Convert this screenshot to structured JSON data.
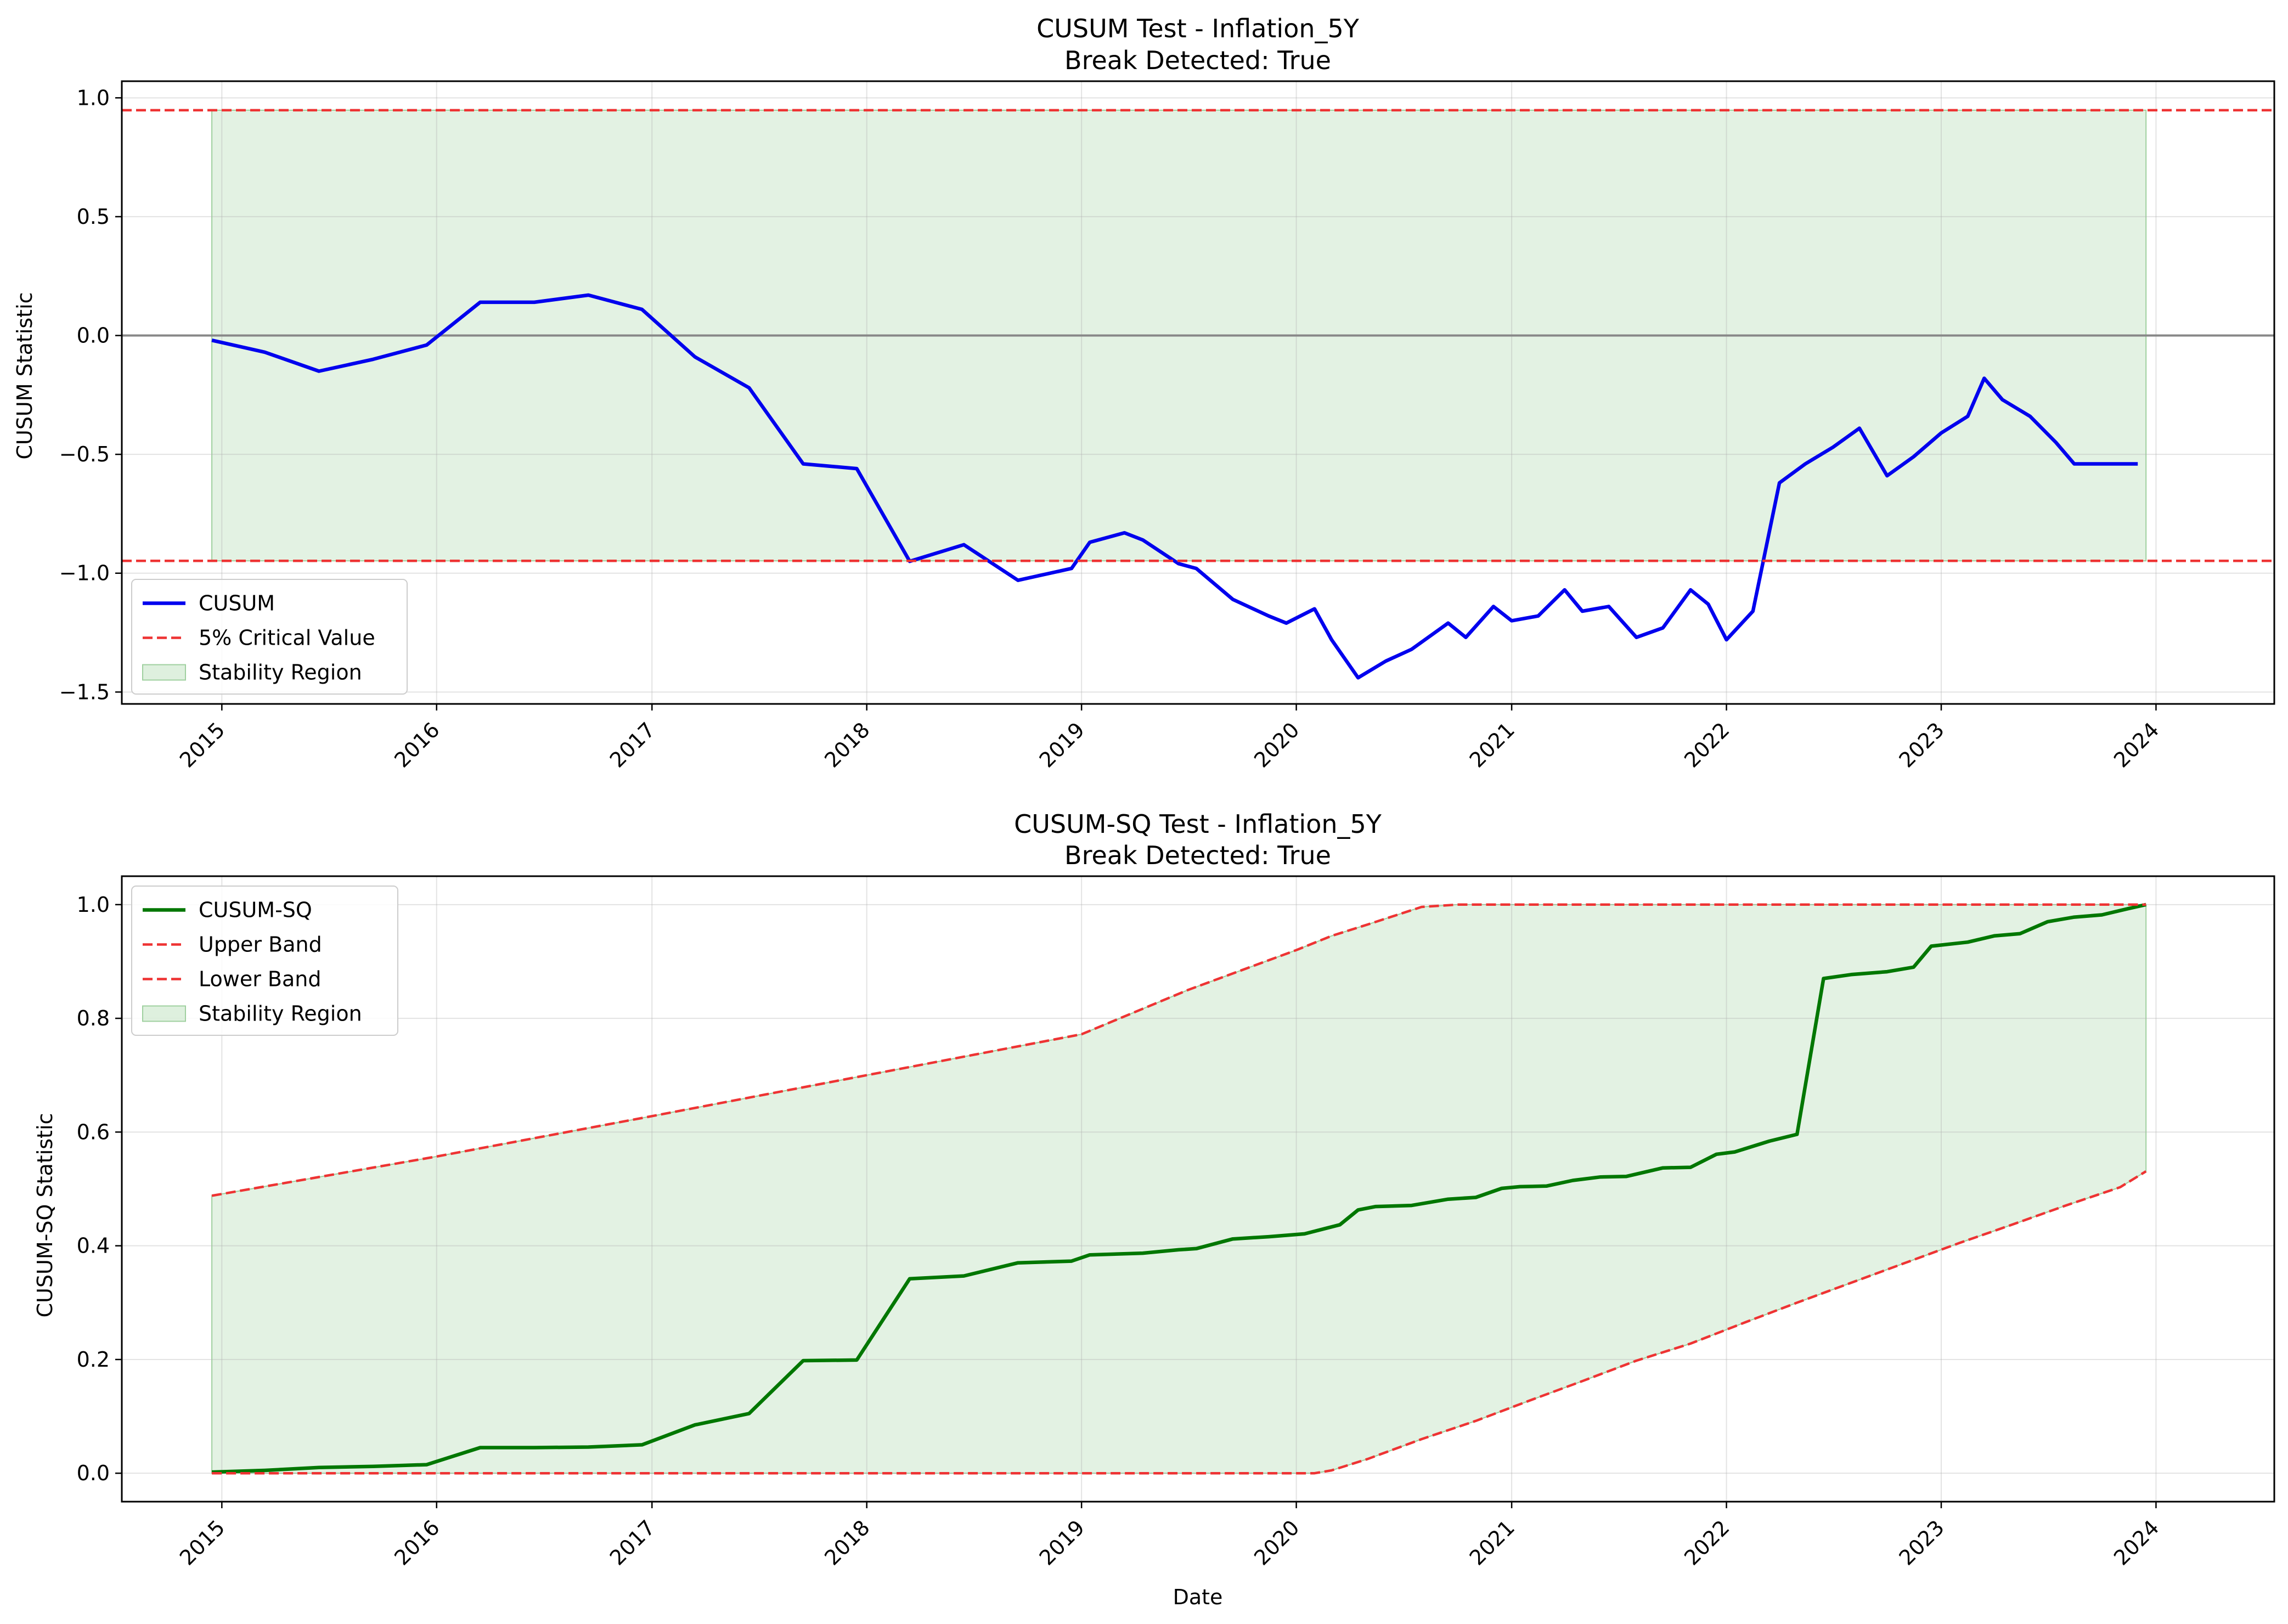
{
  "chart_data": [
    {
      "type": "line",
      "title": "CUSUM Test - Inflation_5Y",
      "subtitle": "Break Detected: True",
      "xlabel": "",
      "ylabel": "CUSUM Statistic",
      "x_ticks": [
        "2015",
        "2016",
        "2017",
        "2018",
        "2019",
        "2020",
        "2021",
        "2022",
        "2023",
        "2024"
      ],
      "xlim": [
        "2014-07-15",
        "2024-07-20"
      ],
      "ylim": [
        -1.55,
        1.07
      ],
      "y_ticks": [
        1.0,
        0.5,
        0.0,
        -0.5,
        -1.0,
        -1.5
      ],
      "y_tick_labels": [
        "1.0",
        "0.5",
        "0.0",
        "−0.5",
        "−1.0",
        "−1.5"
      ],
      "grid": true,
      "legend_position": "lower-left",
      "series": [
        {
          "name": "CUSUM",
          "color": "#0000ee",
          "style": "solid",
          "x": [
            "2014-12-15",
            "2015-03-15",
            "2015-06-15",
            "2015-09-15",
            "2015-12-15",
            "2016-03-15",
            "2016-06-15",
            "2016-09-15",
            "2016-12-15",
            "2017-03-15",
            "2017-06-15",
            "2017-09-15",
            "2017-12-15",
            "2018-03-15",
            "2018-06-15",
            "2018-09-15",
            "2018-12-15",
            "2019-01-15",
            "2019-03-15",
            "2019-04-15",
            "2019-06-15",
            "2019-07-15",
            "2019-09-15",
            "2019-11-15",
            "2019-12-15",
            "2020-02-01",
            "2020-03-01",
            "2020-04-15",
            "2020-06-01",
            "2020-07-15",
            "2020-09-15",
            "2020-10-15",
            "2020-12-01",
            "2021-01-01",
            "2021-02-15",
            "2021-04-01",
            "2021-05-01",
            "2021-06-15",
            "2021-08-01",
            "2021-09-15",
            "2021-11-01",
            "2021-12-01",
            "2022-01-01",
            "2022-02-15",
            "2022-04-01",
            "2022-05-15",
            "2022-07-01",
            "2022-08-15",
            "2022-10-01",
            "2022-11-15",
            "2023-01-01",
            "2023-02-15",
            "2023-03-15",
            "2023-04-15",
            "2023-06-01",
            "2023-07-15",
            "2023-08-15",
            "2023-10-01",
            "2023-11-01",
            "2023-12-01"
          ],
          "y": [
            -0.02,
            -0.07,
            -0.15,
            -0.1,
            -0.04,
            0.14,
            0.14,
            0.17,
            0.11,
            -0.09,
            -0.22,
            -0.54,
            -0.56,
            -0.95,
            -0.88,
            -1.03,
            -0.98,
            -0.87,
            -0.83,
            -0.86,
            -0.96,
            -0.98,
            -1.11,
            -1.18,
            -1.21,
            -1.15,
            -1.28,
            -1.44,
            -1.37,
            -1.32,
            -1.21,
            -1.27,
            -1.14,
            -1.2,
            -1.18,
            -1.07,
            -1.16,
            -1.14,
            -1.27,
            -1.23,
            -1.07,
            -1.13,
            -1.28,
            -1.16,
            -0.62,
            -0.54,
            -0.47,
            -0.39,
            -0.59,
            -0.51,
            -0.41,
            -0.34,
            -0.18,
            -0.27,
            -0.34,
            -0.45,
            -0.54,
            -0.54,
            -0.54,
            -0.54
          ]
        },
        {
          "name": "5% Critical Value",
          "color": "#ee3333",
          "style": "dashed",
          "values": [
            0.948,
            -0.948
          ]
        }
      ],
      "fill": {
        "name": "Stability Region",
        "color": "#c8e6c8",
        "y_range": [
          -0.948,
          0.948
        ],
        "x_range": [
          "2014-12-15",
          "2023-12-15"
        ]
      },
      "reference_line": {
        "y": 0.0,
        "color": "#888888"
      },
      "legend": [
        "CUSUM",
        "5% Critical Value",
        "Stability Region"
      ]
    },
    {
      "type": "line",
      "title": "CUSUM-SQ Test - Inflation_5Y",
      "subtitle": "Break Detected: True",
      "xlabel": "Date",
      "ylabel": "CUSUM-SQ Statistic",
      "x_ticks": [
        "2015",
        "2016",
        "2017",
        "2018",
        "2019",
        "2020",
        "2021",
        "2022",
        "2023",
        "2024"
      ],
      "xlim": [
        "2014-07-15",
        "2024-07-20"
      ],
      "ylim": [
        -0.05,
        1.05
      ],
      "y_ticks": [
        1.0,
        0.8,
        0.6,
        0.4,
        0.2,
        0.0
      ],
      "y_tick_labels": [
        "1.0",
        "0.8",
        "0.6",
        "0.4",
        "0.2",
        "0.0"
      ],
      "grid": true,
      "legend_position": "upper-left",
      "series": [
        {
          "name": "CUSUM-SQ",
          "color": "#007700",
          "style": "solid",
          "x": [
            "2014-12-15",
            "2015-03-15",
            "2015-06-15",
            "2015-09-15",
            "2015-12-15",
            "2016-03-15",
            "2016-06-15",
            "2016-09-15",
            "2016-12-15",
            "2017-03-15",
            "2017-06-15",
            "2017-09-15",
            "2017-12-15",
            "2018-03-15",
            "2018-06-15",
            "2018-09-15",
            "2018-12-15",
            "2019-01-15",
            "2019-04-15",
            "2019-06-15",
            "2019-07-15",
            "2019-09-15",
            "2019-11-15",
            "2020-01-15",
            "2020-03-15",
            "2020-04-15",
            "2020-05-15",
            "2020-07-15",
            "2020-09-15",
            "2020-11-01",
            "2020-12-15",
            "2021-01-15",
            "2021-03-01",
            "2021-04-15",
            "2021-06-01",
            "2021-07-15",
            "2021-09-15",
            "2021-11-01",
            "2021-12-15",
            "2022-01-15",
            "2022-03-15",
            "2022-05-01",
            "2022-06-15",
            "2022-08-01",
            "2022-10-01",
            "2022-11-15",
            "2022-12-15",
            "2023-02-15",
            "2023-04-01",
            "2023-05-15",
            "2023-07-01",
            "2023-08-15",
            "2023-10-01",
            "2023-11-15",
            "2023-12-15"
          ],
          "y": [
            0.002,
            0.005,
            0.01,
            0.012,
            0.015,
            0.045,
            0.045,
            0.046,
            0.05,
            0.085,
            0.105,
            0.198,
            0.199,
            0.342,
            0.347,
            0.37,
            0.373,
            0.384,
            0.387,
            0.393,
            0.395,
            0.412,
            0.416,
            0.421,
            0.437,
            0.463,
            0.469,
            0.471,
            0.482,
            0.485,
            0.501,
            0.504,
            0.505,
            0.515,
            0.521,
            0.522,
            0.537,
            0.538,
            0.561,
            0.565,
            0.584,
            0.596,
            0.87,
            0.877,
            0.882,
            0.89,
            0.927,
            0.934,
            0.945,
            0.949,
            0.97,
            0.978,
            0.982,
            0.993,
            1.0
          ]
        },
        {
          "name": "Upper Band",
          "color": "#ee3333",
          "style": "dashed",
          "x": [
            "2014-12-15",
            "2016-01-01",
            "2017-01-01",
            "2018-01-01",
            "2019-01-01",
            "2019-07-01",
            "2020-01-01",
            "2020-03-01",
            "2020-05-01",
            "2020-08-01",
            "2020-10-01",
            "2023-12-15"
          ],
          "y": [
            0.488,
            0.557,
            0.628,
            0.7,
            0.772,
            0.85,
            0.92,
            0.945,
            0.965,
            0.996,
            1.0,
            1.0
          ]
        },
        {
          "name": "Lower Band",
          "color": "#ee3333",
          "style": "dashed",
          "x": [
            "2014-12-15",
            "2020-02-01",
            "2020-03-01",
            "2020-05-01",
            "2020-08-01",
            "2020-11-01",
            "2021-02-01",
            "2021-05-01",
            "2021-08-01",
            "2021-11-01",
            "2022-02-01",
            "2022-05-01",
            "2022-08-01",
            "2022-11-01",
            "2023-02-01",
            "2023-05-01",
            "2023-08-01",
            "2023-11-01",
            "2023-12-15"
          ],
          "y": [
            0.0,
            0.0,
            0.005,
            0.025,
            0.06,
            0.092,
            0.128,
            0.162,
            0.198,
            0.228,
            0.265,
            0.3,
            0.335,
            0.37,
            0.405,
            0.437,
            0.471,
            0.503,
            0.531
          ]
        }
      ],
      "fill": {
        "name": "Stability Region",
        "color": "#c8e6c8",
        "between": [
          "Lower Band",
          "Upper Band"
        ]
      },
      "legend": [
        "CUSUM-SQ",
        "Upper Band",
        "Lower Band",
        "Stability Region"
      ]
    }
  ]
}
